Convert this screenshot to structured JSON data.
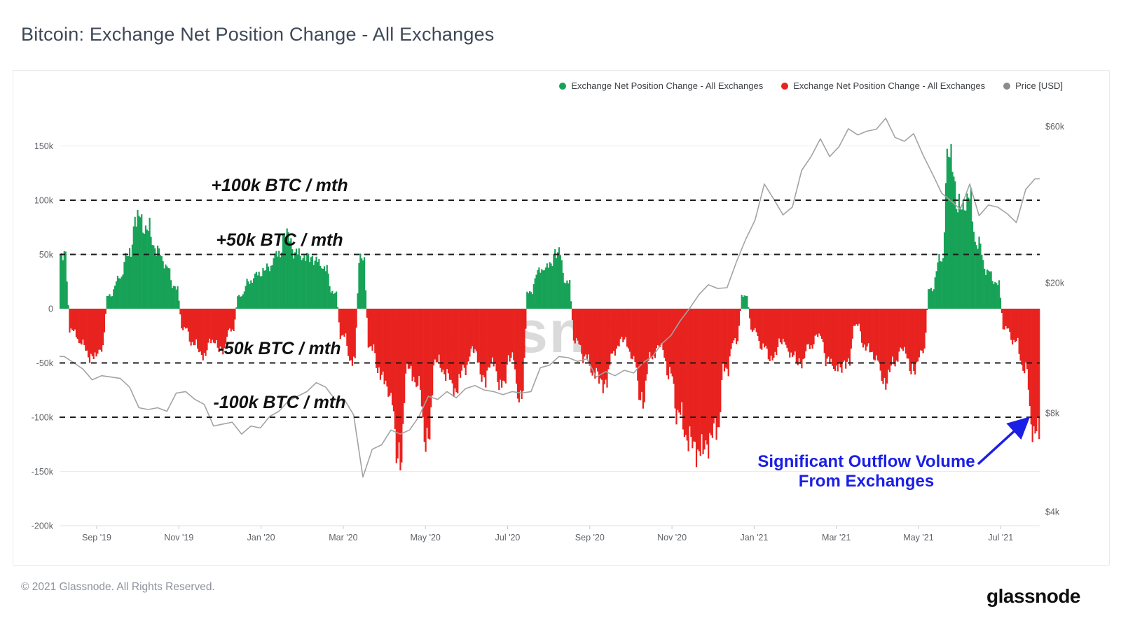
{
  "header": {
    "title": "Bitcoin: Exchange Net Position Change - All Exchanges"
  },
  "legend": {
    "items": [
      {
        "label": "Exchange Net Position Change - All Exchanges",
        "color": "#17a257"
      },
      {
        "label": "Exchange Net Position Change - All Exchanges",
        "color": "#e8221e"
      },
      {
        "label": "Price [USD]",
        "color": "#8c8c8c"
      }
    ]
  },
  "watermark": "glassnode",
  "chart_data": {
    "type": "bar+line",
    "title": "Bitcoin: Exchange Net Position Change - All Exchanges",
    "sampling": "weekly (Aug 2019 - Aug 2021)",
    "x_tick_labels": [
      "Sep '19",
      "Nov '19",
      "Jan '20",
      "Mar '20",
      "May '20",
      "Jul '20",
      "Sep '20",
      "Nov '20",
      "Jan '21",
      "Mar '21",
      "May '21",
      "Jul '21"
    ],
    "left_axis": {
      "unit": "BTC / mth",
      "tick_labels": [
        "150k",
        "100k",
        "50k",
        "0",
        "-50k",
        "-100k",
        "-150k",
        "-200k"
      ],
      "tick_values_k": [
        150,
        100,
        50,
        0,
        -50,
        -100,
        -150,
        -200
      ],
      "ylim_k": [
        -200,
        170
      ],
      "grid": true
    },
    "right_axis": {
      "scale": "log",
      "tick_labels": [
        "$60k",
        "$20k",
        "$8k",
        "$4k"
      ],
      "tick_values_usd": [
        60000,
        20000,
        8000,
        4000
      ]
    },
    "reference_lines": [
      {
        "label": "+100k BTC / mth",
        "value_k": 100
      },
      {
        "label": "+50k BTC / mth",
        "value_k": 50
      },
      {
        "label": "-50k BTC / mth",
        "value_k": -50
      },
      {
        "label": "-100k BTC / mth",
        "value_k": -100
      }
    ],
    "bar_series": {
      "name": "Exchange Net Position Change - All Exchanges",
      "unit": "k BTC / mth",
      "positive_color": "#17a257",
      "negative_color": "#e8221e",
      "values_k": [
        50,
        -20,
        -32,
        -45,
        -38,
        12,
        28,
        50,
        85,
        75,
        55,
        40,
        20,
        -18,
        -32,
        -43,
        -30,
        -38,
        -20,
        12,
        25,
        32,
        38,
        50,
        68,
        52,
        48,
        45,
        38,
        15,
        -25,
        -48,
        46,
        -35,
        -60,
        -80,
        -138,
        -55,
        -70,
        -120,
        -48,
        -60,
        -75,
        -55,
        -38,
        -65,
        -50,
        -70,
        -45,
        -80,
        15,
        35,
        40,
        52,
        25,
        -30,
        -45,
        -60,
        -70,
        -40,
        -28,
        -45,
        -84,
        -45,
        -35,
        -60,
        -96,
        -120,
        -132,
        -125,
        -110,
        -56,
        -30,
        12,
        -20,
        -35,
        -45,
        -30,
        -42,
        -50,
        -35,
        -25,
        -48,
        -55,
        -50,
        -15,
        -35,
        -45,
        -68,
        -50,
        -38,
        -57,
        -40,
        18,
        45,
        140,
        95,
        102,
        60,
        35,
        24,
        -18,
        -30,
        -55,
        -112
      ]
    },
    "price_series": {
      "name": "Price [USD]",
      "color": "#a3a3a3",
      "axis": "right",
      "values_usd": [
        11900,
        11400,
        10900,
        10100,
        10400,
        10300,
        10200,
        9600,
        8300,
        8200,
        8300,
        8100,
        9200,
        9300,
        8800,
        8500,
        7300,
        7400,
        7500,
        6900,
        7300,
        7200,
        7800,
        8100,
        8700,
        9000,
        9300,
        9900,
        9600,
        8800,
        8800,
        7900,
        5100,
        6200,
        6400,
        7100,
        6900,
        7100,
        7800,
        9000,
        8800,
        9300,
        8900,
        9500,
        9700,
        9400,
        9300,
        9100,
        9300,
        9200,
        9300,
        11000,
        11200,
        11900,
        11800,
        11500,
        11700,
        10300,
        10700,
        10400,
        10800,
        10600,
        11400,
        11900,
        13000,
        13800,
        15300,
        16700,
        18400,
        19700,
        19200,
        19300,
        23100,
        27100,
        31000,
        40000,
        36000,
        32200,
        34000,
        44000,
        48500,
        55000,
        48500,
        52000,
        59000,
        56500,
        58000,
        58800,
        63500,
        55500,
        54000,
        57000,
        49000,
        43000,
        37500,
        35500,
        33500,
        40000,
        32000,
        34500,
        34000,
        32500,
        30500,
        38500,
        41500
      ]
    },
    "annotation": {
      "callout_line1": "Significant Outflow Volume",
      "callout_line2": "From Exchanges",
      "color": "#1b1fe6"
    }
  },
  "footer": {
    "copyright": "© 2021 Glassnode. All Rights Reserved.",
    "brand": "glassnode"
  }
}
